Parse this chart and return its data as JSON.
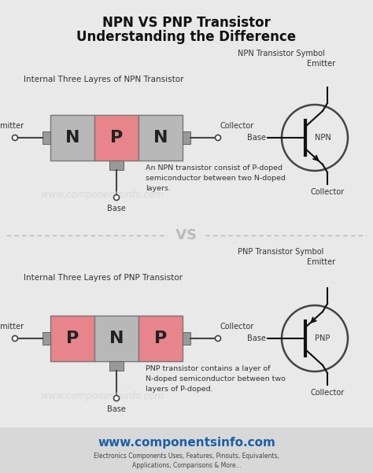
{
  "title_line1": "NPN VS PNP Transistor",
  "title_line2": "Understanding the Difference",
  "bg_color": "#e9e9e9",
  "n_color": "#b8b8b8",
  "p_color": "#e8848c",
  "npn_internal_title": "Internal Three Layres of NPN Transistor",
  "pnp_internal_title": "Internal Three Layres of PNP Transistor",
  "npn_symbol_title": "NPN Transistor Symbol",
  "pnp_symbol_title": "PNP Transistor Symbol",
  "npn_desc": "An NPN transistor consist of P-doped\nsemiconductor between two N-doped\nlayers.",
  "pnp_desc": "PNP transistor contains a layer of\nN-doped semiconductor between two\nlayers of P-doped.",
  "vs_text": "VS",
  "watermark": "www.componentsinfo.com",
  "footer_url": "www.componentsinfo.com",
  "footer_sub": "Electronics Components Uses, Features, Pinouts, Equivalents,\nApplications, Comparisons & More...",
  "footer_bg": "#d8d8d8",
  "line_color": "#888888",
  "text_color": "#333333",
  "title_color": "#111111",
  "base_lead_color": "#777777",
  "symbol_circle_color": "#444444",
  "vs_color": "#bbbbbb"
}
